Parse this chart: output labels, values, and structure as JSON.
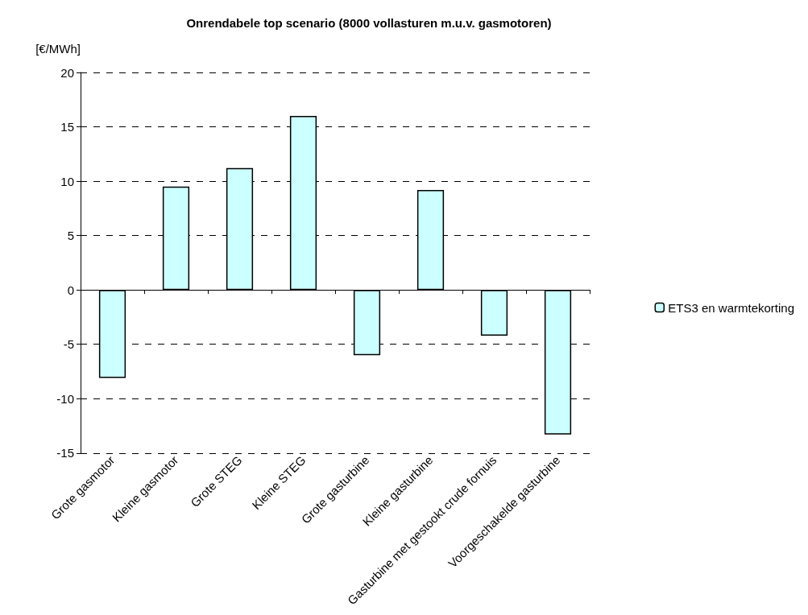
{
  "chart_data": {
    "type": "bar",
    "title": "Onrendabele top scenario (8000 vollasturen m.u.v. gasmotoren)",
    "ylabel": "[€/MWh]",
    "categories": [
      "Grote gasmotor",
      "Kleine gasmotor",
      "Grote STEG",
      "Kleine STEG",
      "Grote gasturbine",
      "Kleine gasturbine",
      "Gasturbine met gestookt crude fornuis",
      "Voorgeschakelde gasturbine"
    ],
    "series": [
      {
        "name": "ETS3 en warmtekorting",
        "color": "#ccffff",
        "values": [
          -8.1,
          9.5,
          11.2,
          16.0,
          -6.0,
          9.2,
          -4.2,
          -13.3
        ]
      }
    ],
    "ylim": [
      -15,
      20
    ],
    "yticks": [
      -15,
      -10,
      -5,
      0,
      5,
      10,
      15,
      20
    ],
    "grid": "y",
    "legend": "right"
  }
}
